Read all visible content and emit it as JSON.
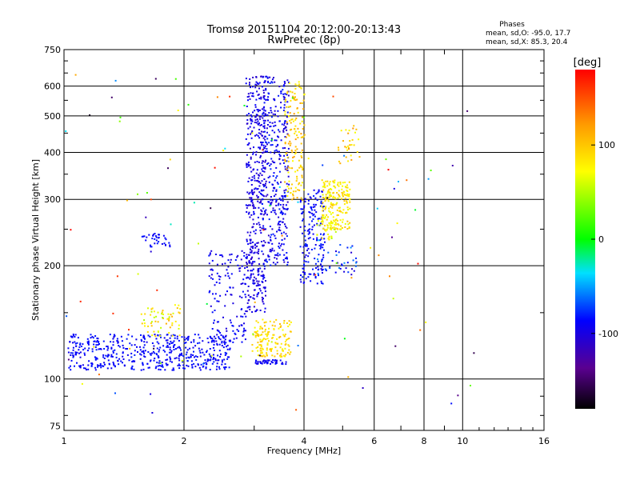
{
  "chart_data": {
    "type": "scatter",
    "title": "Tromsø 20151104 20:12:00-20:13:43",
    "subtitle": "RwPretec (8p)",
    "xlabel": "Frequency [MHz]",
    "ylabel": "Stationary phase Virtual Height [km]",
    "x_scale": "log",
    "y_scale": "log",
    "xlim": [
      1,
      16
    ],
    "ylim": [
      73,
      750
    ],
    "x_ticks": [
      1,
      2,
      4,
      6,
      8,
      10,
      16
    ],
    "y_ticks": [
      75,
      100,
      200,
      300,
      400,
      500,
      600,
      750
    ],
    "grid": true,
    "phase_stats": {
      "title": "Phases",
      "o_line": "mean, sd,O: -95.0, 17.7",
      "x_line": "mean, sd,X: 85.3, 20.4"
    },
    "colorbar": {
      "label": "[deg]",
      "range": [
        -180,
        180
      ],
      "ticks": [
        100,
        0,
        -100
      ],
      "colormap": "rainbow (black-purple-blue-cyan-green-yellow-orange-red)"
    },
    "series": [
      {
        "clusters": [
          {
            "x0": 1.02,
            "x1": 2.6,
            "y0": 106,
            "y1": 132,
            "n": 520,
            "phase": -100,
            "spread": 8
          },
          {
            "x0": 2.3,
            "x1": 2.85,
            "y0": 125,
            "y1": 220,
            "n": 140,
            "phase": -105,
            "spread": 10
          },
          {
            "x0": 1.55,
            "x1": 1.95,
            "y0": 130,
            "y1": 160,
            "n": 60,
            "phase": 75,
            "spread": 35
          },
          {
            "x0": 1.55,
            "x1": 1.85,
            "y0": 225,
            "y1": 245,
            "n": 35,
            "phase": -100,
            "spread": 8
          },
          {
            "x0": 2.85,
            "x1": 3.2,
            "y0": 150,
            "y1": 640,
            "n": 420,
            "phase": -110,
            "spread": 10
          },
          {
            "x0": 3.1,
            "x1": 3.65,
            "y0": 200,
            "y1": 640,
            "n": 380,
            "phase": -105,
            "spread": 15
          },
          {
            "x0": 3.55,
            "x1": 4.0,
            "y0": 300,
            "y1": 620,
            "n": 150,
            "phase": 95,
            "spread": 25
          },
          {
            "x0": 3.9,
            "x1": 4.5,
            "y0": 180,
            "y1": 320,
            "n": 170,
            "phase": -100,
            "spread": 10
          },
          {
            "x0": 4.4,
            "x1": 5.2,
            "y0": 250,
            "y1": 340,
            "n": 200,
            "phase": 80,
            "spread": 20
          },
          {
            "x0": 4.25,
            "x1": 4.8,
            "y0": 235,
            "y1": 265,
            "n": 30,
            "phase": 65,
            "spread": 20
          },
          {
            "x0": 2.95,
            "x1": 3.7,
            "y0": 115,
            "y1": 145,
            "n": 150,
            "phase": 85,
            "spread": 20
          },
          {
            "x0": 3.0,
            "x1": 3.6,
            "y0": 110,
            "y1": 113,
            "n": 45,
            "phase": -105,
            "spread": 8
          },
          {
            "x0": 4.8,
            "x1": 5.5,
            "y0": 380,
            "y1": 480,
            "n": 30,
            "phase": 95,
            "spread": 30
          },
          {
            "x0": 4.3,
            "x1": 5.4,
            "y0": 190,
            "y1": 230,
            "n": 40,
            "phase": -90,
            "spread": 30
          },
          {
            "x0": 1.0,
            "x1": 11.0,
            "y0": 80,
            "y1": 650,
            "n": 110,
            "phase": 0,
            "spread": 180
          }
        ]
      }
    ],
    "colors": {
      "background": "#ffffff",
      "grid": "#000000"
    }
  }
}
